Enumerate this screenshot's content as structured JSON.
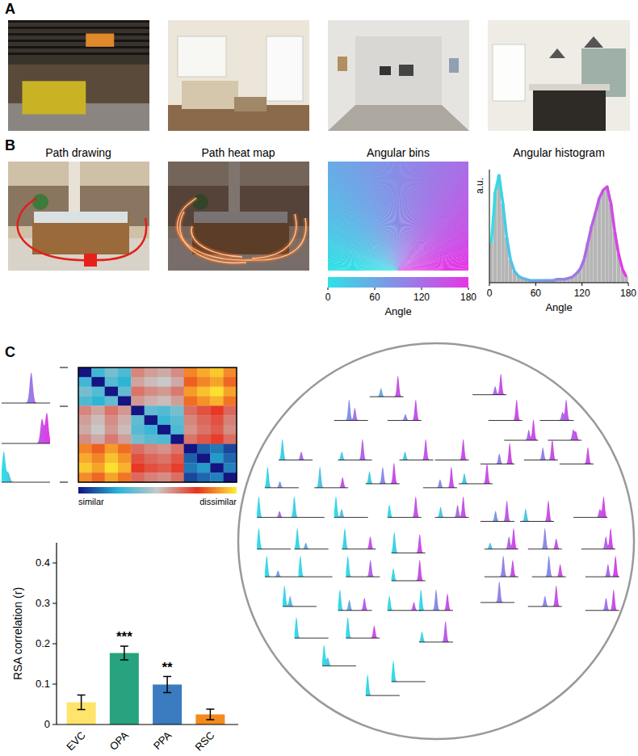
{
  "panels": {
    "A": {
      "label": "A"
    },
    "B": {
      "label": "B",
      "path_drawing": {
        "title": "Path drawing"
      },
      "path_heat_map": {
        "title": "Path heat map"
      },
      "angular_bins": {
        "title": "Angular bins",
        "range": [
          0,
          180
        ],
        "ticks": [
          0,
          60,
          120,
          180
        ],
        "label": "Angle"
      }
    },
    "C": {
      "label": "C"
    }
  },
  "rdm": {
    "range": [
      0,
      1
    ],
    "labels": [
      "similar",
      "dissimilar"
    ],
    "matrix": [
      [
        0,
        0.29,
        0.37,
        0.31,
        0.61,
        0.57,
        0.55,
        0.6,
        0.86,
        0.91,
        0.95,
        0.87
      ],
      [
        0.29,
        0,
        0.32,
        0.26,
        0.56,
        0.52,
        0.5,
        0.55,
        0.81,
        0.86,
        0.9,
        0.82
      ],
      [
        0.37,
        0.32,
        0,
        0.34,
        0.64,
        0.6,
        0.58,
        0.63,
        0.89,
        0.94,
        0.98,
        0.9
      ],
      [
        0.31,
        0.26,
        0.34,
        0,
        0.58,
        0.54,
        0.52,
        0.57,
        0.83,
        0.88,
        0.92,
        0.84
      ],
      [
        0.61,
        0.56,
        0.64,
        0.58,
        0,
        0.34,
        0.32,
        0.37,
        0.65,
        0.7,
        0.74,
        0.66
      ],
      [
        0.57,
        0.52,
        0.6,
        0.54,
        0.34,
        0,
        0.28,
        0.33,
        0.61,
        0.66,
        0.7,
        0.62
      ],
      [
        0.55,
        0.5,
        0.58,
        0.52,
        0.32,
        0.28,
        0,
        0.31,
        0.59,
        0.64,
        0.68,
        0.6
      ],
      [
        0.6,
        0.55,
        0.63,
        0.57,
        0.37,
        0.33,
        0.31,
        0,
        0.64,
        0.69,
        0.73,
        0.65
      ],
      [
        0.86,
        0.81,
        0.89,
        0.83,
        0.65,
        0.61,
        0.59,
        0.64,
        0,
        0.12,
        0.16,
        0.08
      ],
      [
        0.91,
        0.86,
        0.94,
        0.88,
        0.7,
        0.66,
        0.64,
        0.69,
        0.12,
        0,
        0.21,
        0.13
      ],
      [
        0.95,
        0.9,
        0.98,
        0.92,
        0.74,
        0.7,
        0.68,
        0.73,
        0.16,
        0.21,
        0,
        0.17
      ],
      [
        0.87,
        0.82,
        0.9,
        0.84,
        0.66,
        0.62,
        0.6,
        0.65,
        0.08,
        0.13,
        0.17,
        0
      ]
    ],
    "examples": [
      {
        "peaks": [
          [
            110,
            1
          ]
        ]
      },
      {
        "peaks": [
          [
            150,
            0.8
          ],
          [
            168,
            1
          ]
        ]
      },
      {
        "peaks": [
          [
            8,
            1
          ],
          [
            25,
            0.3
          ]
        ]
      }
    ]
  },
  "mds": {
    "items": [
      {
        "x": -0.25,
        "y": 0.73,
        "peaks": [
          [
            60,
            0.4
          ],
          [
            150,
            1
          ]
        ]
      },
      {
        "x": 0.27,
        "y": 0.74,
        "peaks": [
          [
            120,
            0.4
          ],
          [
            150,
            1
          ]
        ]
      },
      {
        "x": -0.43,
        "y": 0.61,
        "peaks": [
          [
            80,
            1
          ],
          [
            110,
            0.6
          ]
        ]
      },
      {
        "x": -0.16,
        "y": 0.61,
        "peaks": [
          [
            95,
            0.3
          ],
          [
            150,
            1
          ]
        ]
      },
      {
        "x": 0.35,
        "y": 0.61,
        "peaks": [
          [
            150,
            1
          ]
        ]
      },
      {
        "x": 0.61,
        "y": 0.61,
        "peaks": [
          [
            120,
            0.4
          ],
          [
            140,
            1
          ]
        ]
      },
      {
        "x": 0.43,
        "y": 0.51,
        "peaks": [
          [
            130,
            0.5
          ],
          [
            155,
            1
          ]
        ]
      },
      {
        "x": 0.65,
        "y": 0.51,
        "peaks": [
          [
            135,
            0.5
          ],
          [
            150,
            0.4
          ]
        ]
      },
      {
        "x": -0.71,
        "y": 0.41,
        "peaks": [
          [
            20,
            1
          ],
          [
            120,
            0.4
          ]
        ]
      },
      {
        "x": -0.41,
        "y": 0.41,
        "peaks": [
          [
            20,
            0.4
          ],
          [
            130,
            1
          ]
        ]
      },
      {
        "x": -0.1,
        "y": 0.41,
        "peaks": [
          [
            30,
            0.4
          ],
          [
            140,
            1
          ]
        ]
      },
      {
        "x": 0.08,
        "y": 0.41,
        "peaks": [
          [
            150,
            1
          ]
        ]
      },
      {
        "x": 0.31,
        "y": 0.39,
        "peaks": [
          [
            100,
            0.5
          ],
          [
            155,
            1
          ]
        ]
      },
      {
        "x": 0.53,
        "y": 0.41,
        "peaks": [
          [
            100,
            0.6
          ],
          [
            150,
            1
          ]
        ]
      },
      {
        "x": 0.71,
        "y": 0.39,
        "peaks": [
          [
            150,
            0.8
          ]
        ]
      },
      {
        "x": -0.78,
        "y": 0.27,
        "peaks": [
          [
            15,
            1
          ],
          [
            80,
            0.3
          ]
        ]
      },
      {
        "x": -0.53,
        "y": 0.27,
        "peaks": [
          [
            30,
            1
          ],
          [
            150,
            0.5
          ]
        ]
      },
      {
        "x": -0.27,
        "y": 0.29,
        "peaks": [
          [
            20,
            0.6
          ],
          [
            90,
            0.8
          ],
          [
            150,
            1
          ]
        ]
      },
      {
        "x": 0.02,
        "y": 0.27,
        "peaks": [
          [
            90,
            0.4
          ],
          [
            150,
            1
          ]
        ]
      },
      {
        "x": 0.2,
        "y": 0.29,
        "peaks": [
          [
            30,
            0.5
          ],
          [
            150,
            1
          ]
        ]
      },
      {
        "x": -0.82,
        "y": 0.12,
        "peaks": [
          [
            10,
            1
          ],
          [
            120,
            0.3
          ]
        ]
      },
      {
        "x": -0.65,
        "y": 0.12,
        "peaks": [
          [
            20,
            1
          ]
        ]
      },
      {
        "x": -0.43,
        "y": 0.12,
        "peaks": [
          [
            10,
            1
          ],
          [
            40,
            0.4
          ]
        ]
      },
      {
        "x": -0.16,
        "y": 0.12,
        "peaks": [
          [
            10,
            0.6
          ],
          [
            150,
            1
          ]
        ]
      },
      {
        "x": 0.08,
        "y": 0.12,
        "peaks": [
          [
            30,
            0.5
          ],
          [
            120,
            0.6
          ],
          [
            150,
            1
          ]
        ]
      },
      {
        "x": 0.31,
        "y": 0.1,
        "peaks": [
          [
            80,
            0.5
          ],
          [
            140,
            1
          ]
        ]
      },
      {
        "x": 0.51,
        "y": 0.1,
        "peaks": [
          [
            30,
            0.6
          ],
          [
            150,
            1
          ]
        ]
      },
      {
        "x": 0.78,
        "y": 0.12,
        "peaks": [
          [
            140,
            0.4
          ],
          [
            160,
            1
          ]
        ]
      },
      {
        "x": -0.82,
        "y": -0.04,
        "peaks": [
          [
            10,
            1
          ]
        ]
      },
      {
        "x": -0.63,
        "y": -0.04,
        "peaks": [
          [
            15,
            1
          ],
          [
            60,
            0.3
          ]
        ]
      },
      {
        "x": -0.39,
        "y": -0.04,
        "peaks": [
          [
            15,
            1
          ],
          [
            150,
            0.6
          ]
        ]
      },
      {
        "x": -0.14,
        "y": -0.06,
        "peaks": [
          [
            15,
            1
          ],
          [
            150,
            0.9
          ]
        ]
      },
      {
        "x": 0.33,
        "y": -0.04,
        "peaks": [
          [
            30,
            0.3
          ],
          [
            130,
            0.6
          ],
          [
            155,
            1
          ]
        ]
      },
      {
        "x": 0.55,
        "y": -0.04,
        "peaks": [
          [
            90,
            1
          ],
          [
            150,
            0.5
          ]
        ]
      },
      {
        "x": 0.82,
        "y": -0.04,
        "peaks": [
          [
            130,
            0.6
          ],
          [
            155,
            1
          ]
        ]
      },
      {
        "x": -0.78,
        "y": -0.18,
        "peaks": [
          [
            10,
            1
          ],
          [
            70,
            0.3
          ]
        ]
      },
      {
        "x": -0.61,
        "y": -0.18,
        "peaks": [
          [
            10,
            1
          ]
        ]
      },
      {
        "x": -0.37,
        "y": -0.18,
        "peaks": [
          [
            10,
            1
          ],
          [
            130,
            0.8
          ]
        ]
      },
      {
        "x": -0.14,
        "y": -0.2,
        "peaks": [
          [
            10,
            0.6
          ],
          [
            150,
            1
          ]
        ]
      },
      {
        "x": 0.33,
        "y": -0.18,
        "peaks": [
          [
            100,
            1
          ],
          [
            150,
            0.8
          ]
        ]
      },
      {
        "x": 0.57,
        "y": -0.18,
        "peaks": [
          [
            90,
            1
          ],
          [
            150,
            0.6
          ]
        ]
      },
      {
        "x": 0.84,
        "y": -0.18,
        "peaks": [
          [
            120,
            0.6
          ],
          [
            160,
            1
          ]
        ]
      },
      {
        "x": -0.69,
        "y": -0.33,
        "peaks": [
          [
            10,
            1
          ],
          [
            40,
            0.5
          ]
        ]
      },
      {
        "x": -0.41,
        "y": -0.35,
        "peaks": [
          [
            10,
            1
          ],
          [
            60,
            0.5
          ],
          [
            140,
            0.6
          ]
        ]
      },
      {
        "x": -0.16,
        "y": -0.35,
        "peaks": [
          [
            10,
            0.7
          ],
          [
            140,
            0.4
          ]
        ]
      },
      {
        "x": 0,
        "y": -0.35,
        "peaks": [
          [
            10,
            1
          ],
          [
            90,
            1
          ],
          [
            150,
            0.8
          ]
        ]
      },
      {
        "x": 0.31,
        "y": -0.31,
        "peaks": [
          [
            100,
            1
          ]
        ]
      },
      {
        "x": 0.55,
        "y": -0.33,
        "peaks": [
          [
            90,
            0.5
          ],
          [
            150,
            1
          ]
        ]
      },
      {
        "x": 0.84,
        "y": -0.35,
        "peaks": [
          [
            110,
            0.6
          ],
          [
            150,
            1
          ]
        ]
      },
      {
        "x": -0.63,
        "y": -0.49,
        "peaks": [
          [
            10,
            1
          ]
        ]
      },
      {
        "x": -0.37,
        "y": -0.49,
        "peaks": [
          [
            10,
            1
          ],
          [
            150,
            0.6
          ]
        ]
      },
      {
        "x": 0,
        "y": -0.51,
        "peaks": [
          [
            15,
            0.5
          ],
          [
            140,
            1
          ]
        ]
      },
      {
        "x": -0.49,
        "y": -0.63,
        "peaks": [
          [
            10,
            1
          ],
          [
            30,
            0.4
          ]
        ]
      },
      {
        "x": -0.14,
        "y": -0.71,
        "peaks": [
          [
            10,
            1
          ]
        ]
      },
      {
        "x": -0.27,
        "y": -0.78,
        "peaks": [
          [
            10,
            1
          ]
        ]
      }
    ]
  },
  "chart_data": [
    {
      "type": "histogram",
      "title": "Angular histogram",
      "bins": [
        0,
        5,
        10,
        15,
        20,
        25,
        30,
        35,
        40,
        45,
        50,
        55,
        60,
        65,
        70,
        75,
        80,
        85,
        90,
        95,
        100,
        105,
        110,
        115,
        120,
        125,
        130,
        135,
        140,
        145,
        150,
        155,
        160,
        165,
        170,
        175,
        180
      ],
      "counts": [
        0.35,
        0.8,
        0.95,
        0.7,
        0.4,
        0.2,
        0.1,
        0.06,
        0.04,
        0.03,
        0.02,
        0.02,
        0.02,
        0.02,
        0.02,
        0.02,
        0.02,
        0.03,
        0.03,
        0.03,
        0.04,
        0.05,
        0.08,
        0.12,
        0.2,
        0.35,
        0.5,
        0.62,
        0.75,
        0.82,
        0.85,
        0.7,
        0.45,
        0.25,
        0.12,
        0.05
      ],
      "xlim": [
        0,
        180
      ],
      "xticks": [
        0,
        60,
        120,
        180
      ],
      "ylim": [
        0,
        1
      ],
      "xlabel": "Angle",
      "ylabel": "a.u.",
      "tick_labels": "x",
      "color": "#b5b5b5"
    },
    {
      "type": "bar",
      "categories": [
        "EVC",
        "OPA",
        "PPA",
        "RSC"
      ],
      "values": [
        0.055,
        0.177,
        0.099,
        0.025
      ],
      "errors": [
        0.018,
        0.017,
        0.02,
        0.013
      ],
      "colors": [
        "#ffe46b",
        "#27a37f",
        "#3b7cc0",
        "#f28a1e"
      ],
      "significance": [
        null,
        "***",
        "**",
        null
      ],
      "ylabel": "RSA correlation (r)",
      "ylim": [
        0,
        0.45
      ],
      "yticks": [
        0,
        0.1,
        0.2,
        0.3,
        0.4
      ]
    }
  ]
}
